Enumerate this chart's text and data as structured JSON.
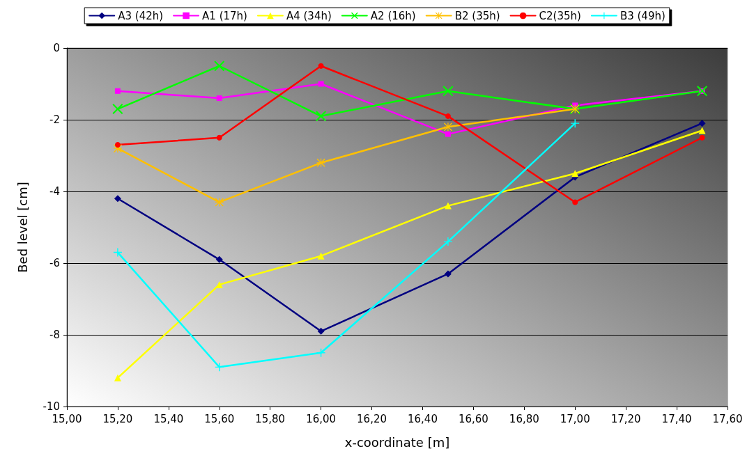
{
  "chart_data": {
    "type": "line",
    "xlabel": "x-coordinate [m]",
    "ylabel": "Bed level [cm]",
    "x": [
      15.2,
      15.6,
      16.0,
      16.5,
      17.0,
      17.5
    ],
    "xlim": [
      15.0,
      17.6
    ],
    "xticks": [
      {
        "value": 15.0,
        "label": "15,00"
      },
      {
        "value": 15.2,
        "label": "15,20"
      },
      {
        "value": 15.4,
        "label": "15,40"
      },
      {
        "value": 15.6,
        "label": "15,60"
      },
      {
        "value": 15.8,
        "label": "15,80"
      },
      {
        "value": 16.0,
        "label": "16,00"
      },
      {
        "value": 16.2,
        "label": "16,20"
      },
      {
        "value": 16.4,
        "label": "16,40"
      },
      {
        "value": 16.6,
        "label": "16,60"
      },
      {
        "value": 16.8,
        "label": "16,80"
      },
      {
        "value": 17.0,
        "label": "17,00"
      },
      {
        "value": 17.2,
        "label": "17,20"
      },
      {
        "value": 17.4,
        "label": "17,40"
      },
      {
        "value": 17.6,
        "label": "17,60"
      }
    ],
    "ylim": [
      -10,
      0
    ],
    "yticks": [
      -10,
      -8,
      -6,
      -4,
      -2,
      0
    ],
    "grid": "y",
    "legend": "top",
    "series": [
      {
        "name": "A3 (42h)",
        "color": "#000080",
        "marker": "diamond",
        "values": [
          -4.2,
          -5.9,
          -7.9,
          -6.3,
          -3.6,
          -2.1
        ]
      },
      {
        "name": "A1 (17h)",
        "color": "#ff00ff",
        "marker": "square",
        "values": [
          -1.2,
          -1.4,
          -1.0,
          -2.4,
          -1.6,
          -1.2
        ]
      },
      {
        "name": "A4 (34h)",
        "color": "#ffff00",
        "marker": "triangle",
        "values": [
          -9.2,
          -6.6,
          -5.8,
          -4.4,
          -3.5,
          -2.3
        ]
      },
      {
        "name": "A2 (16h)",
        "color": "#00ff00",
        "marker": "cross",
        "values": [
          -1.7,
          -0.5,
          -1.9,
          -1.2,
          -1.7,
          -1.2
        ]
      },
      {
        "name": "B2 (35h)",
        "color": "#ffc000",
        "marker": "star",
        "values": [
          -2.8,
          -4.3,
          -3.2,
          -2.2,
          -1.7,
          null
        ]
      },
      {
        "name": "C2(35h)",
        "color": "#ff0000",
        "marker": "circle",
        "values": [
          -2.7,
          -2.5,
          -0.5,
          -1.9,
          -4.3,
          -2.5
        ]
      },
      {
        "name": "B3 (49h)",
        "color": "#00ffff",
        "marker": "plus",
        "values": [
          -5.7,
          -8.9,
          -8.5,
          -5.4,
          -2.1,
          null
        ]
      }
    ]
  }
}
